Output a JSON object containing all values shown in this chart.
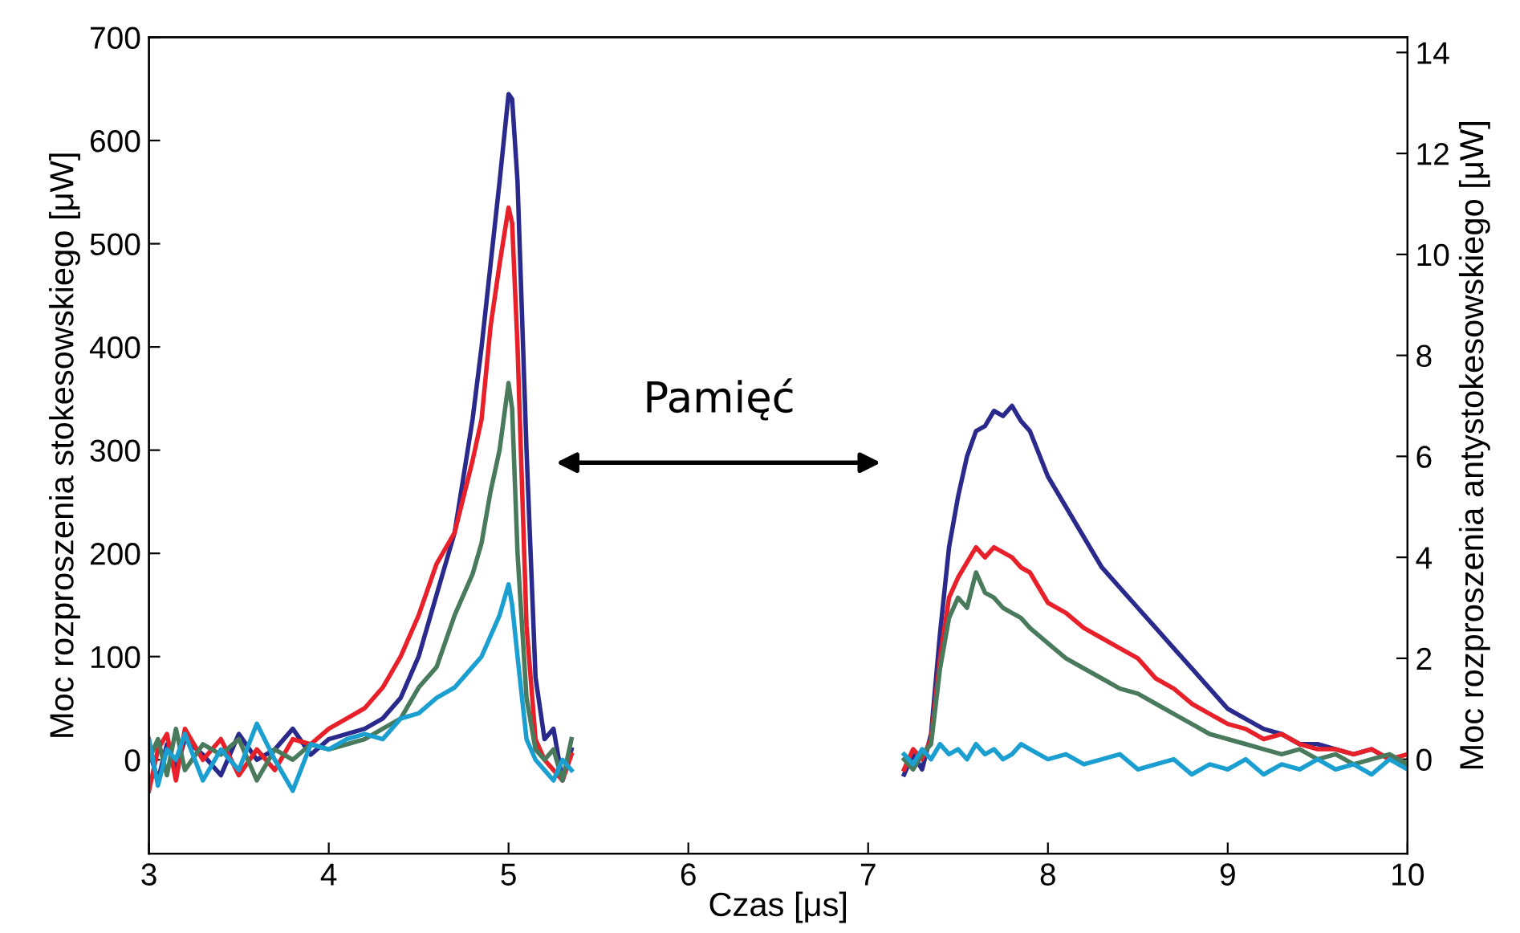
{
  "chart_data": {
    "type": "line",
    "xlabel": "Czas [μs]",
    "ylabel": "Moc rozproszenia stokesowskiego [μW]",
    "y2label": "Moc rozproszenia antystokesowskiego [μW]",
    "xlim": [
      3,
      10
    ],
    "xticks": [
      3,
      4,
      5,
      6,
      7,
      8,
      9,
      10
    ],
    "ylim": [
      -91,
      700
    ],
    "yticks": [
      0,
      100,
      200,
      300,
      400,
      500,
      600,
      700
    ],
    "y2lim": [
      -1.87,
      14.3
    ],
    "y2ticks": [
      0,
      2,
      4,
      6,
      8,
      10,
      12,
      14
    ],
    "grid": false,
    "legend": false,
    "line_style": "solid",
    "marker": "none",
    "annotations": [
      "Pamięć"
    ],
    "series": [
      {
        "color": "#2a2a8c",
        "x": [
          3,
          3.05,
          3.1,
          3.15,
          3.2,
          3.3,
          3.4,
          3.5,
          3.6,
          3.7,
          3.8,
          3.9,
          4.0,
          4.1,
          4.2,
          4.3,
          4.4,
          4.5,
          4.6,
          4.7,
          4.8,
          4.85,
          4.9,
          4.95,
          5.0,
          5.02,
          5.05,
          5.1,
          5.15,
          5.2,
          5.25,
          5.3,
          5.35
        ],
        "values": [
          10,
          -20,
          15,
          -10,
          20,
          5,
          -15,
          25,
          0,
          10,
          30,
          5,
          20,
          25,
          30,
          40,
          60,
          100,
          160,
          220,
          330,
          400,
          480,
          560,
          645,
          640,
          560,
          300,
          80,
          20,
          30,
          -20,
          10
        ]
      },
      {
        "color": "#e8202a",
        "x": [
          3,
          3.05,
          3.1,
          3.15,
          3.2,
          3.3,
          3.4,
          3.5,
          3.6,
          3.7,
          3.8,
          3.9,
          4.0,
          4.1,
          4.2,
          4.3,
          4.4,
          4.5,
          4.6,
          4.7,
          4.8,
          4.85,
          4.9,
          4.95,
          5.0,
          5.02,
          5.05,
          5.1,
          5.15,
          5.2,
          5.25,
          5.3,
          5.35
        ],
        "values": [
          -30,
          10,
          25,
          -20,
          30,
          0,
          20,
          -15,
          10,
          -10,
          20,
          15,
          30,
          40,
          50,
          70,
          100,
          140,
          190,
          220,
          290,
          330,
          420,
          480,
          535,
          520,
          400,
          130,
          20,
          0,
          -10,
          -20,
          5
        ]
      },
      {
        "color": "#4a7a5c",
        "x": [
          3,
          3.05,
          3.1,
          3.15,
          3.2,
          3.3,
          3.4,
          3.5,
          3.6,
          3.7,
          3.8,
          3.9,
          4.0,
          4.1,
          4.2,
          4.3,
          4.4,
          4.5,
          4.6,
          4.7,
          4.8,
          4.85,
          4.9,
          4.95,
          5.0,
          5.02,
          5.05,
          5.1,
          5.15,
          5.2,
          5.25,
          5.3,
          5.35
        ],
        "values": [
          0,
          20,
          -15,
          30,
          -10,
          15,
          5,
          20,
          -20,
          10,
          0,
          15,
          10,
          15,
          20,
          30,
          40,
          70,
          90,
          140,
          180,
          210,
          260,
          300,
          365,
          340,
          200,
          60,
          10,
          0,
          10,
          -20,
          20
        ]
      },
      {
        "color": "#1a9fd0",
        "x": [
          3,
          3.05,
          3.1,
          3.15,
          3.2,
          3.3,
          3.4,
          3.5,
          3.6,
          3.7,
          3.8,
          3.9,
          4.0,
          4.1,
          4.2,
          4.3,
          4.4,
          4.5,
          4.6,
          4.7,
          4.8,
          4.85,
          4.9,
          4.95,
          5.0,
          5.02,
          5.05,
          5.1,
          5.15,
          5.2,
          5.25,
          5.3,
          5.35
        ],
        "values": [
          20,
          -25,
          10,
          0,
          25,
          -20,
          10,
          -10,
          35,
          0,
          -30,
          15,
          10,
          20,
          25,
          20,
          40,
          45,
          60,
          70,
          90,
          100,
          120,
          140,
          170,
          150,
          100,
          20,
          0,
          -10,
          -20,
          0,
          -10
        ]
      },
      {
        "color": "#2a2a8c",
        "axis": "y2",
        "x": [
          7.2,
          7.25,
          7.3,
          7.35,
          7.4,
          7.45,
          7.5,
          7.55,
          7.6,
          7.65,
          7.7,
          7.75,
          7.8,
          7.85,
          7.9,
          8.0,
          8.1,
          8.2,
          8.3,
          8.4,
          8.5,
          8.6,
          8.7,
          8.8,
          8.9,
          9.0,
          9.1,
          9.2,
          9.3,
          9.4,
          9.5,
          9.6,
          9.7,
          9.8,
          9.9,
          10.0
        ],
        "values": [
          -0.3,
          0.1,
          -0.2,
          0.5,
          2.5,
          4.2,
          5.2,
          6.0,
          6.5,
          6.6,
          6.9,
          6.8,
          7.0,
          6.7,
          6.5,
          5.6,
          5.0,
          4.4,
          3.8,
          3.4,
          3.0,
          2.6,
          2.2,
          1.8,
          1.4,
          1.0,
          0.8,
          0.6,
          0.5,
          0.3,
          0.3,
          0.2,
          0.1,
          0.2,
          0.0,
          -0.1
        ]
      },
      {
        "color": "#e8202a",
        "axis": "y2",
        "x": [
          7.2,
          7.25,
          7.3,
          7.35,
          7.4,
          7.45,
          7.5,
          7.55,
          7.6,
          7.65,
          7.7,
          7.75,
          7.8,
          7.85,
          7.9,
          8.0,
          8.1,
          8.2,
          8.3,
          8.4,
          8.5,
          8.6,
          8.7,
          8.8,
          8.9,
          9.0,
          9.1,
          9.2,
          9.3,
          9.4,
          9.5,
          9.6,
          9.7,
          9.8,
          9.9,
          10.0
        ],
        "values": [
          -0.2,
          0.2,
          0.0,
          0.4,
          2.0,
          3.2,
          3.6,
          3.9,
          4.2,
          4.0,
          4.2,
          4.1,
          4.0,
          3.8,
          3.7,
          3.1,
          2.9,
          2.6,
          2.4,
          2.2,
          2.0,
          1.6,
          1.4,
          1.1,
          0.9,
          0.7,
          0.6,
          0.4,
          0.5,
          0.3,
          0.2,
          0.2,
          0.1,
          0.2,
          0.0,
          0.1
        ]
      },
      {
        "color": "#4a7a5c",
        "axis": "y2",
        "x": [
          7.2,
          7.25,
          7.3,
          7.35,
          7.4,
          7.45,
          7.5,
          7.55,
          7.6,
          7.65,
          7.7,
          7.75,
          7.8,
          7.85,
          7.9,
          8.0,
          8.1,
          8.2,
          8.3,
          8.4,
          8.5,
          8.6,
          8.7,
          8.8,
          8.9,
          9.0,
          9.1,
          9.2,
          9.3,
          9.4,
          9.5,
          9.6,
          9.7,
          9.8,
          9.9,
          10.0
        ],
        "values": [
          0.0,
          -0.2,
          0.1,
          0.3,
          1.8,
          2.8,
          3.2,
          3.0,
          3.7,
          3.3,
          3.2,
          3.0,
          2.9,
          2.8,
          2.6,
          2.3,
          2.0,
          1.8,
          1.6,
          1.4,
          1.3,
          1.1,
          0.9,
          0.7,
          0.5,
          0.4,
          0.3,
          0.2,
          0.1,
          0.2,
          0.0,
          0.1,
          -0.1,
          0.0,
          0.1,
          -0.1
        ]
      },
      {
        "color": "#1a9fd0",
        "axis": "y2",
        "x": [
          7.2,
          7.25,
          7.3,
          7.35,
          7.4,
          7.45,
          7.5,
          7.55,
          7.6,
          7.65,
          7.7,
          7.75,
          7.8,
          7.85,
          7.9,
          8.0,
          8.1,
          8.2,
          8.3,
          8.4,
          8.5,
          8.6,
          8.7,
          8.8,
          8.9,
          9.0,
          9.1,
          9.2,
          9.3,
          9.4,
          9.5,
          9.6,
          9.7,
          9.8,
          9.9,
          10.0
        ],
        "values": [
          0.1,
          -0.1,
          0.2,
          0.0,
          0.3,
          0.1,
          0.2,
          0.0,
          0.3,
          0.1,
          0.2,
          0.0,
          0.1,
          0.3,
          0.2,
          0.0,
          0.1,
          -0.1,
          0.0,
          0.1,
          -0.2,
          -0.1,
          0.0,
          -0.3,
          -0.1,
          -0.2,
          0.0,
          -0.3,
          -0.1,
          -0.2,
          0.0,
          -0.2,
          -0.1,
          -0.3,
          0.0,
          -0.2
        ]
      }
    ]
  }
}
